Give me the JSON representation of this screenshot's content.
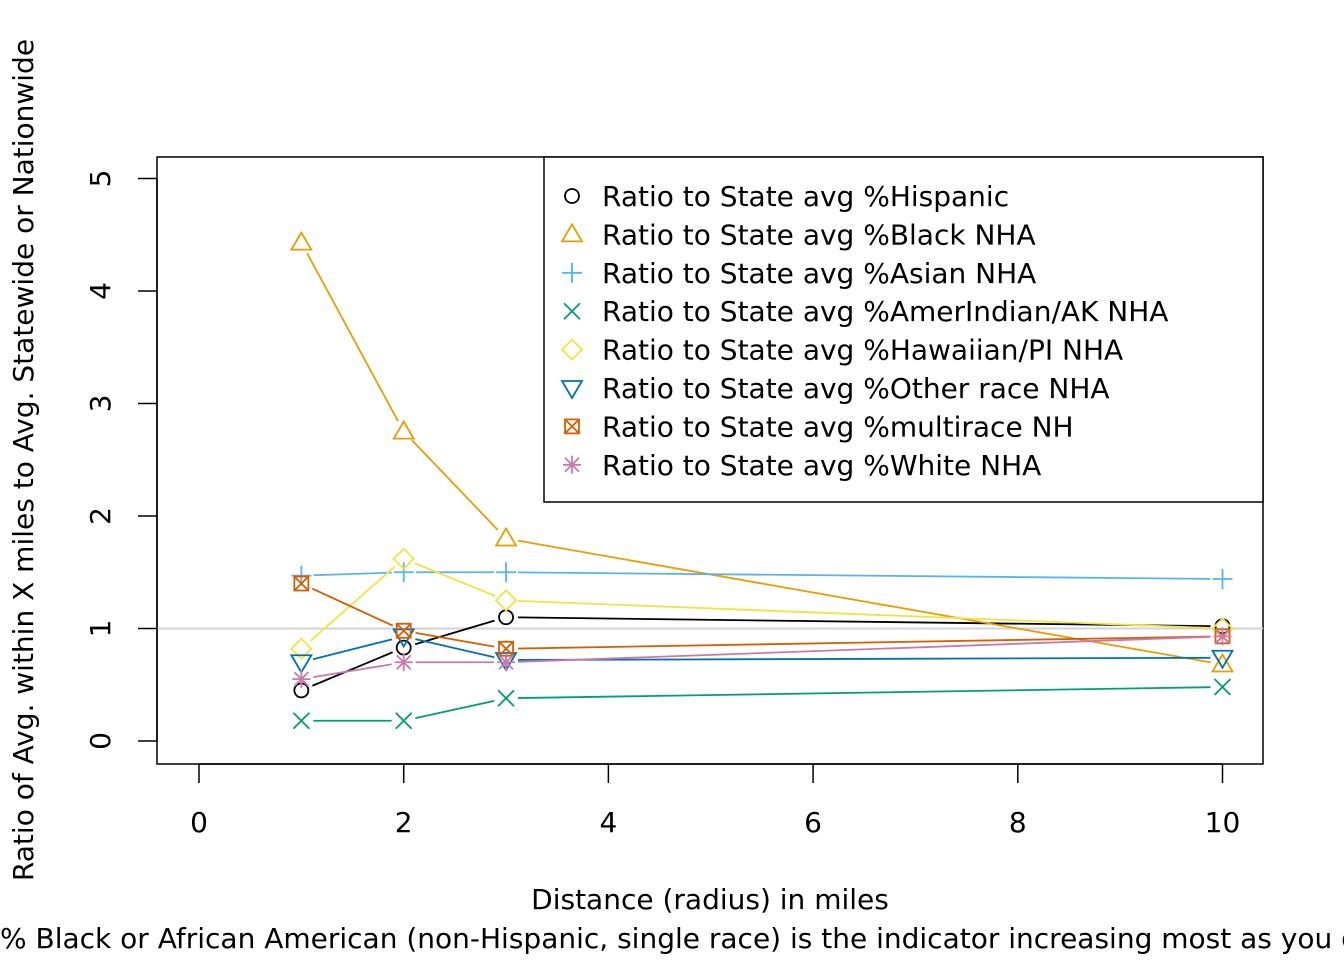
{
  "chart_data": {
    "type": "line",
    "xlabel": "Distance (radius) in miles",
    "ylabel": "Ratio of Avg. within X miles to Avg. Statewide or Nationwide",
    "subtitle": "% Black or African American (non-Hispanic, single race) is the indicator increasing most as you get closer",
    "x": [
      1,
      2,
      3,
      10
    ],
    "xlim": [
      0,
      10
    ],
    "ylim": [
      0,
      5
    ],
    "xticks": [
      0,
      2,
      4,
      6,
      8,
      10
    ],
    "yticks": [
      0,
      1,
      2,
      3,
      4,
      5
    ],
    "reference_line": 1,
    "legend_position": "top-right",
    "series": [
      {
        "name": "Ratio to State avg %Hispanic",
        "color": "#000000",
        "marker": "circle",
        "values": [
          0.45,
          0.83,
          1.1,
          1.02
        ]
      },
      {
        "name": "Ratio to State avg %Black NHA",
        "color": "#E69F00",
        "marker": "triangle-up",
        "values": [
          4.43,
          2.75,
          1.8,
          0.68
        ]
      },
      {
        "name": "Ratio to State avg %Asian NHA",
        "color": "#56B4E9",
        "marker": "plus",
        "values": [
          1.47,
          1.5,
          1.5,
          1.44
        ]
      },
      {
        "name": "Ratio to State avg %AmerIndian/AK NHA",
        "color": "#009E73",
        "marker": "cross",
        "values": [
          0.18,
          0.18,
          0.38,
          0.48
        ]
      },
      {
        "name": "Ratio to State avg %Hawaiian/PI NHA",
        "color": "#F0E442",
        "marker": "diamond",
        "values": [
          0.82,
          1.62,
          1.25,
          1.0
        ]
      },
      {
        "name": "Ratio to State avg %Other race NHA",
        "color": "#0072B2",
        "marker": "triangle-down",
        "values": [
          0.7,
          0.93,
          0.72,
          0.74
        ]
      },
      {
        "name": "Ratio to State avg %multirace NH",
        "color": "#D55E00",
        "marker": "square-x",
        "values": [
          1.4,
          0.98,
          0.82,
          0.93
        ]
      },
      {
        "name": "Ratio to State avg %White NHA",
        "color": "#CC79A7",
        "marker": "asterisk",
        "values": [
          0.55,
          0.7,
          0.7,
          0.93
        ]
      }
    ]
  }
}
